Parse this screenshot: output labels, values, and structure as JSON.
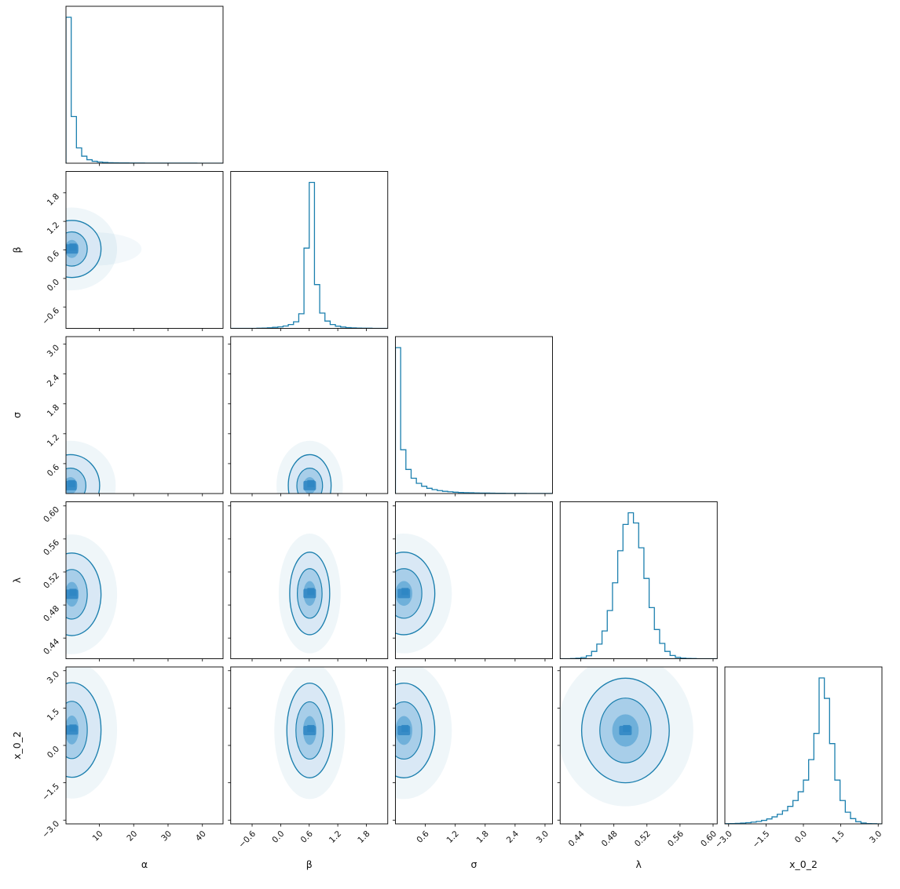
{
  "chart_data": {
    "type": "scatter",
    "subtype": "corner-plot",
    "title": "",
    "description": "Posterior corner plot: 1D step histograms on the diagonal, 2D contour density panels in the lower triangle",
    "accent_color": "#1b7fae",
    "fill_colors": [
      "#d9e8f5",
      "#a8cee9",
      "#6fb0da"
    ],
    "core_color": "#2f86c3",
    "frame_color": "#000000",
    "parameters": [
      {
        "name": "α",
        "range": [
          0.3,
          46.0
        ],
        "ticks": [
          10,
          20,
          30,
          40
        ],
        "tick_labels": [
          "10",
          "20",
          "30",
          "40"
        ]
      },
      {
        "name": "β",
        "range": [
          -1.05,
          2.25
        ],
        "ticks": [
          -0.6,
          0.0,
          0.6,
          1.2,
          1.8
        ],
        "tick_labels": [
          "−0.6",
          "0.0",
          "0.6",
          "1.2",
          "1.8"
        ]
      },
      {
        "name": "σ",
        "range": [
          0.0,
          3.15
        ],
        "ticks": [
          0.6,
          1.2,
          1.8,
          2.4,
          3.0
        ],
        "tick_labels": [
          "0.6",
          "1.2",
          "1.8",
          "2.4",
          "3.0"
        ]
      },
      {
        "name": "λ",
        "range": [
          0.415,
          0.605
        ],
        "ticks": [
          0.44,
          0.48,
          0.52,
          0.56,
          0.6
        ],
        "tick_labels": [
          "0.44",
          "0.48",
          "0.52",
          "0.56",
          "0.60"
        ]
      },
      {
        "name": "x_0_2",
        "range": [
          -3.15,
          3.15
        ],
        "ticks": [
          -3.0,
          -1.5,
          0.0,
          1.5,
          3.0
        ],
        "tick_labels": [
          "−3.0",
          "−1.5",
          "0.0",
          "1.5",
          "3.0"
        ]
      }
    ],
    "histograms": [
      {
        "param": "α",
        "values": [
          1.0,
          0.32,
          0.105,
          0.048,
          0.024,
          0.013,
          0.008,
          0.005,
          0.0035,
          0.0025,
          0.002,
          0.0016,
          0.0013,
          0.001,
          0.0009,
          0.0007,
          0.0006,
          0.0005,
          0.0005,
          0.0004,
          0.0003,
          0.0003,
          0.0002,
          0.0002,
          0.0002,
          0.0001,
          0.0001,
          0.0001,
          0.0001,
          0.0
        ]
      },
      {
        "param": "β",
        "values": [
          0,
          0,
          0,
          0,
          0,
          0.001,
          0.002,
          0.004,
          0.007,
          0.01,
          0.016,
          0.026,
          0.045,
          0.1,
          0.55,
          1.0,
          0.3,
          0.105,
          0.05,
          0.026,
          0.015,
          0.009,
          0.005,
          0.003,
          0.002,
          0.001,
          0.001,
          0,
          0,
          0
        ]
      },
      {
        "param": "σ",
        "values": [
          1.0,
          0.3,
          0.165,
          0.105,
          0.07,
          0.05,
          0.036,
          0.027,
          0.02,
          0.015,
          0.012,
          0.009,
          0.007,
          0.006,
          0.005,
          0.004,
          0.0035,
          0.003,
          0.0025,
          0.002,
          0.0018,
          0.0015,
          0.0012,
          0.001,
          0.0009,
          0.0008,
          0.0007,
          0.0006,
          0.0005,
          0.0004
        ]
      },
      {
        "param": "λ",
        "values": [
          0,
          0,
          0.001,
          0.003,
          0.008,
          0.02,
          0.05,
          0.1,
          0.19,
          0.33,
          0.52,
          0.74,
          0.92,
          1.0,
          0.93,
          0.76,
          0.55,
          0.35,
          0.2,
          0.105,
          0.05,
          0.022,
          0.009,
          0.004,
          0.002,
          0.001,
          0,
          0,
          0,
          0
        ]
      },
      {
        "param": "x_0_2",
        "values": [
          0.001,
          0.002,
          0.003,
          0.005,
          0.008,
          0.012,
          0.017,
          0.024,
          0.034,
          0.048,
          0.066,
          0.09,
          0.12,
          0.16,
          0.22,
          0.3,
          0.44,
          0.62,
          1.0,
          0.86,
          0.55,
          0.3,
          0.16,
          0.08,
          0.036,
          0.015,
          0.006,
          0.002,
          0.001,
          0
        ]
      }
    ],
    "contour_panels": [
      {
        "x": 0,
        "y": 1,
        "cx": 2.0,
        "cy": 0.62,
        "levels": [
          [
            8.5,
            0.6
          ],
          [
            4.5,
            0.36
          ],
          [
            2.0,
            0.19
          ]
        ],
        "tail": [
          14,
          0.35
        ]
      },
      {
        "x": 0,
        "y": 2,
        "cx": 1.6,
        "cy": 0.16,
        "levels": [
          [
            8.5,
            0.62
          ],
          [
            4.5,
            0.35
          ],
          [
            2.0,
            0.17
          ]
        ]
      },
      {
        "x": 1,
        "y": 2,
        "cx": 0.61,
        "cy": 0.16,
        "levels": [
          [
            0.45,
            0.62
          ],
          [
            0.27,
            0.35
          ],
          [
            0.13,
            0.17
          ]
        ]
      },
      {
        "x": 0,
        "y": 3,
        "cx": 2.0,
        "cy": 0.493,
        "levels": [
          [
            8.5,
            0.05
          ],
          [
            4.5,
            0.03
          ],
          [
            2.0,
            0.015
          ]
        ]
      },
      {
        "x": 1,
        "y": 3,
        "cx": 0.61,
        "cy": 0.494,
        "levels": [
          [
            0.42,
            0.05
          ],
          [
            0.26,
            0.03
          ],
          [
            0.13,
            0.015
          ]
        ]
      },
      {
        "x": 2,
        "y": 3,
        "cx": 0.17,
        "cy": 0.494,
        "levels": [
          [
            0.62,
            0.05
          ],
          [
            0.36,
            0.03
          ],
          [
            0.17,
            0.015
          ]
        ]
      },
      {
        "x": 0,
        "y": 4,
        "cx": 2.0,
        "cy": 0.62,
        "levels": [
          [
            8.5,
            1.9
          ],
          [
            4.5,
            1.15
          ],
          [
            2.0,
            0.58
          ]
        ]
      },
      {
        "x": 1,
        "y": 4,
        "cx": 0.61,
        "cy": 0.6,
        "levels": [
          [
            0.48,
            1.9
          ],
          [
            0.29,
            1.15
          ],
          [
            0.14,
            0.58
          ]
        ]
      },
      {
        "x": 2,
        "y": 4,
        "cx": 0.17,
        "cy": 0.6,
        "levels": [
          [
            0.62,
            1.9
          ],
          [
            0.36,
            1.15
          ],
          [
            0.17,
            0.58
          ]
        ]
      },
      {
        "x": 3,
        "y": 4,
        "cx": 0.494,
        "cy": 0.6,
        "levels": [
          [
            0.053,
            2.1
          ],
          [
            0.031,
            1.3
          ],
          [
            0.016,
            0.65
          ]
        ]
      }
    ]
  }
}
